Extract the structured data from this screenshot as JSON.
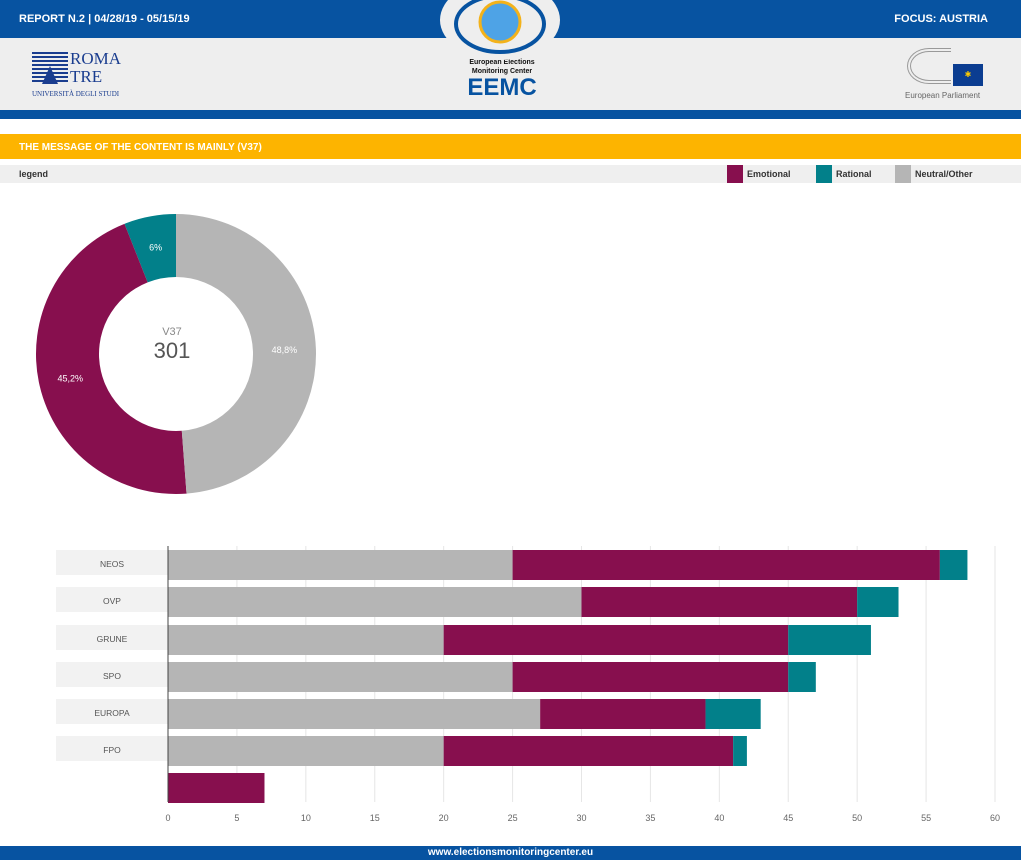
{
  "header": {
    "report": "REPORT N.2 | 04/28/19 - 05/15/19",
    "focus": "FOCUS: AUSTRIA",
    "logo_left": "ROMA TRE UNIVERSITÀ DEGLI STUDI",
    "logo_center_line1": "European Elections",
    "logo_center_line2": "Monitoring Center",
    "logo_center_acronym": "EEMC",
    "logo_right": "European Parliament"
  },
  "section_title": "THE MESSAGE OF THE CONTENT IS MAINLY (V37)",
  "legend": {
    "label": "legend",
    "items": [
      {
        "name": "Emotional",
        "color": "#870f4e"
      },
      {
        "name": "Rational",
        "color": "#02808a"
      },
      {
        "name": "Neutral/Other",
        "color": "#b5b5b5"
      }
    ]
  },
  "footer": "www.electionsmonitoringcenter.eu",
  "chart_data": [
    {
      "type": "pie",
      "donut": true,
      "center_label": "V37",
      "center_value": "301",
      "slices": [
        {
          "name": "Neutral/Other",
          "value": 48.8,
          "label": "48,8%"
        },
        {
          "name": "Emotional",
          "value": 45.2,
          "label": "45,2%"
        },
        {
          "name": "Rational",
          "value": 6,
          "label": "6%"
        }
      ]
    },
    {
      "type": "bar",
      "orientation": "horizontal",
      "stacked": true,
      "categories": [
        "NEOS",
        "OVP",
        "GRUNE",
        "SPO",
        "EUROPA",
        "FPO",
        ""
      ],
      "series": [
        {
          "name": "Neutral/Other",
          "values": [
            25,
            30,
            20,
            25,
            27,
            20,
            0
          ]
        },
        {
          "name": "Emotional",
          "values": [
            31,
            20,
            25,
            20,
            12,
            21,
            7
          ]
        },
        {
          "name": "Rational",
          "values": [
            2,
            3,
            6,
            2,
            4,
            1,
            0
          ]
        }
      ],
      "xlim": [
        0,
        60
      ],
      "xticks": [
        0,
        5,
        10,
        15,
        20,
        25,
        30,
        35,
        40,
        45,
        50,
        55,
        60
      ],
      "grid": true
    }
  ]
}
